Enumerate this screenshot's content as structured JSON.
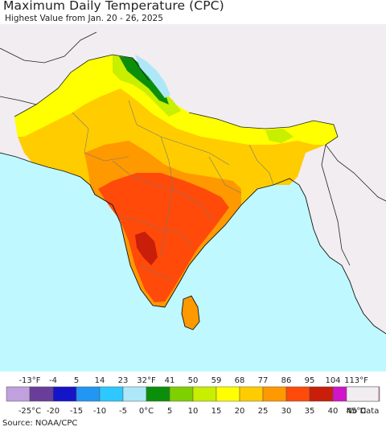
{
  "header": {
    "title": "Maximum Daily Temperature (CPC)",
    "subtitle": "Highest Value from Jan. 20 - 26, 2025"
  },
  "legend": {
    "f_labels": [
      "-13°F",
      "-4",
      "5",
      "14",
      "23",
      "32°F",
      "41",
      "50",
      "59",
      "68",
      "77",
      "86",
      "95",
      "104",
      "113°F"
    ],
    "c_labels": [
      "-25°C",
      "-20",
      "-15",
      "-10",
      "-5",
      "0°C",
      "5",
      "10",
      "15",
      "20",
      "25",
      "30",
      "35",
      "40",
      "45°C"
    ],
    "colors": [
      "#c0a0dd",
      "#6a3d9a",
      "#1515c8",
      "#2196f3",
      "#2dc8ff",
      "#aee8f8",
      "#0b8f0b",
      "#7ed000",
      "#c8ee00",
      "#ffff00",
      "#ffcc00",
      "#ff9900",
      "#ff4a0a",
      "#c81e0a",
      "#d015c8",
      "#f088c8"
    ],
    "no_data_label": "No Data",
    "no_data_color": "#f1edf1"
  },
  "map": {
    "ocean_color": "#bff8ff",
    "land_color": "#f1edf1"
  },
  "source": "Source: NOAA/CPC"
}
